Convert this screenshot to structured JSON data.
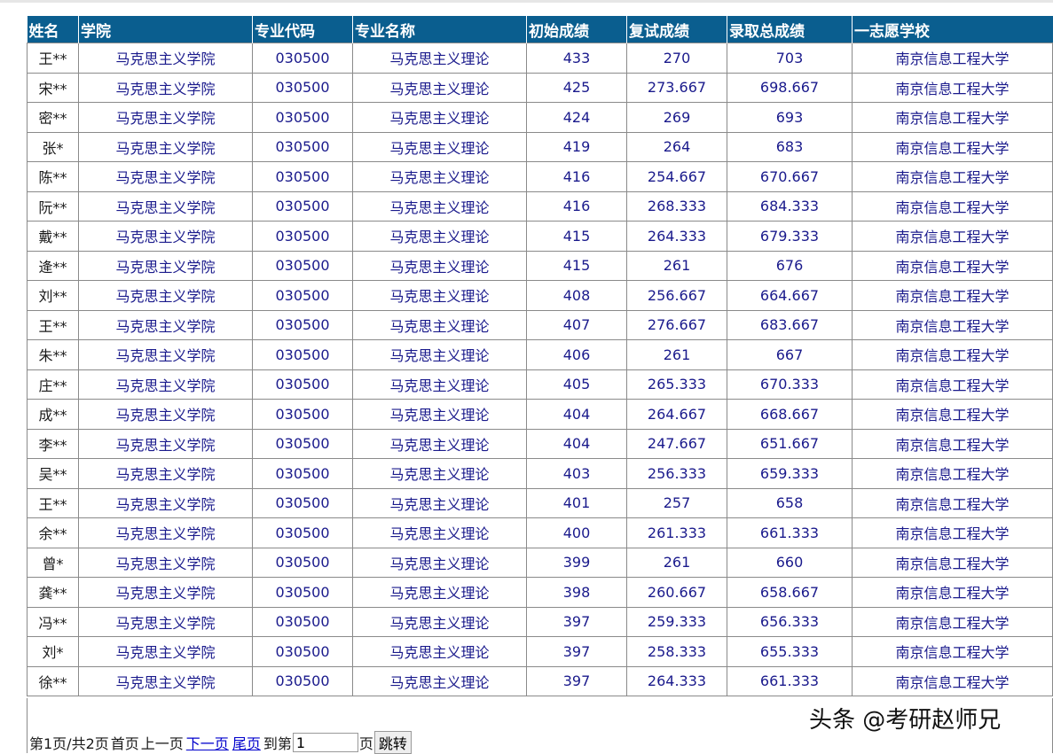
{
  "table": {
    "headers": [
      "姓名",
      "学院",
      "专业代码",
      "专业名称",
      "初始成绩",
      "复试成绩",
      "录取总成绩",
      "一志愿学校"
    ],
    "rows": [
      [
        "王**",
        "马克思主义学院",
        "030500",
        "马克思主义理论",
        "433",
        "270",
        "703",
        "南京信息工程大学"
      ],
      [
        "宋**",
        "马克思主义学院",
        "030500",
        "马克思主义理论",
        "425",
        "273.667",
        "698.667",
        "南京信息工程大学"
      ],
      [
        "密**",
        "马克思主义学院",
        "030500",
        "马克思主义理论",
        "424",
        "269",
        "693",
        "南京信息工程大学"
      ],
      [
        "张*",
        "马克思主义学院",
        "030500",
        "马克思主义理论",
        "419",
        "264",
        "683",
        "南京信息工程大学"
      ],
      [
        "陈**",
        "马克思主义学院",
        "030500",
        "马克思主义理论",
        "416",
        "254.667",
        "670.667",
        "南京信息工程大学"
      ],
      [
        "阮**",
        "马克思主义学院",
        "030500",
        "马克思主义理论",
        "416",
        "268.333",
        "684.333",
        "南京信息工程大学"
      ],
      [
        "戴**",
        "马克思主义学院",
        "030500",
        "马克思主义理论",
        "415",
        "264.333",
        "679.333",
        "南京信息工程大学"
      ],
      [
        "逄**",
        "马克思主义学院",
        "030500",
        "马克思主义理论",
        "415",
        "261",
        "676",
        "南京信息工程大学"
      ],
      [
        "刘**",
        "马克思主义学院",
        "030500",
        "马克思主义理论",
        "408",
        "256.667",
        "664.667",
        "南京信息工程大学"
      ],
      [
        "王**",
        "马克思主义学院",
        "030500",
        "马克思主义理论",
        "407",
        "276.667",
        "683.667",
        "南京信息工程大学"
      ],
      [
        "朱**",
        "马克思主义学院",
        "030500",
        "马克思主义理论",
        "406",
        "261",
        "667",
        "南京信息工程大学"
      ],
      [
        "庄**",
        "马克思主义学院",
        "030500",
        "马克思主义理论",
        "405",
        "265.333",
        "670.333",
        "南京信息工程大学"
      ],
      [
        "成**",
        "马克思主义学院",
        "030500",
        "马克思主义理论",
        "404",
        "264.667",
        "668.667",
        "南京信息工程大学"
      ],
      [
        "李**",
        "马克思主义学院",
        "030500",
        "马克思主义理论",
        "404",
        "247.667",
        "651.667",
        "南京信息工程大学"
      ],
      [
        "吴**",
        "马克思主义学院",
        "030500",
        "马克思主义理论",
        "403",
        "256.333",
        "659.333",
        "南京信息工程大学"
      ],
      [
        "王**",
        "马克思主义学院",
        "030500",
        "马克思主义理论",
        "401",
        "257",
        "658",
        "南京信息工程大学"
      ],
      [
        "余**",
        "马克思主义学院",
        "030500",
        "马克思主义理论",
        "400",
        "261.333",
        "661.333",
        "南京信息工程大学"
      ],
      [
        "曾*",
        "马克思主义学院",
        "030500",
        "马克思主义理论",
        "399",
        "261",
        "660",
        "南京信息工程大学"
      ],
      [
        "龚**",
        "马克思主义学院",
        "030500",
        "马克思主义理论",
        "398",
        "260.667",
        "658.667",
        "南京信息工程大学"
      ],
      [
        "冯**",
        "马克思主义学院",
        "030500",
        "马克思主义理论",
        "397",
        "259.333",
        "656.333",
        "南京信息工程大学"
      ],
      [
        "刘*",
        "马克思主义学院",
        "030500",
        "马克思主义理论",
        "397",
        "258.333",
        "655.333",
        "南京信息工程大学"
      ],
      [
        "徐**",
        "马克思主义学院",
        "030500",
        "马克思主义理论",
        "397",
        "264.333",
        "661.333",
        "南京信息工程大学"
      ]
    ]
  },
  "pager": {
    "page_info": "第1页/共2页",
    "first": "首页",
    "prev": "上一页",
    "next": "下一页",
    "last": "尾页",
    "goto_prefix": "到第",
    "goto_value": "1",
    "goto_suffix": "页",
    "jump_button": "跳转"
  },
  "watermark": "头条 @考研赵师兄"
}
